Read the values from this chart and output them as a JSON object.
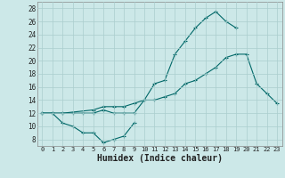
{
  "xlabel": "Humidex (Indice chaleur)",
  "xlim": [
    -0.5,
    23.5
  ],
  "ylim": [
    7,
    29
  ],
  "yticks": [
    8,
    10,
    12,
    14,
    16,
    18,
    20,
    22,
    24,
    26,
    28
  ],
  "xticks": [
    0,
    1,
    2,
    3,
    4,
    5,
    6,
    7,
    8,
    9,
    10,
    11,
    12,
    13,
    14,
    15,
    16,
    17,
    18,
    19,
    20,
    21,
    22,
    23
  ],
  "bg_color": "#cce8e8",
  "grid_color": "#aacece",
  "line_color": "#006868",
  "line1_y": [
    12,
    12,
    10.5,
    10,
    9,
    9,
    7.5,
    8,
    8.5,
    10.5
  ],
  "line1_x": [
    0,
    1,
    2,
    3,
    4,
    5,
    6,
    7,
    8,
    9
  ],
  "line2_y": [
    12,
    12,
    12,
    12,
    12,
    12,
    12.5,
    12,
    12,
    12,
    14,
    14,
    14.5,
    15,
    16.5,
    17,
    18,
    19,
    20.5,
    21,
    21,
    16.5,
    15,
    13.5
  ],
  "line2_x": [
    0,
    1,
    2,
    3,
    4,
    5,
    6,
    7,
    8,
    9,
    10,
    11,
    12,
    13,
    14,
    15,
    16,
    17,
    18,
    19,
    20,
    21,
    22,
    23
  ],
  "line3_y": [
    12,
    12,
    12,
    12.5,
    13,
    13,
    13,
    13.5,
    14,
    16.5,
    17,
    21,
    23,
    25,
    26.5,
    27.5,
    26,
    25
  ],
  "line3_x": [
    0,
    1,
    2,
    5,
    6,
    7,
    8,
    9,
    10,
    11,
    12,
    13,
    14,
    15,
    16,
    17,
    18,
    19
  ]
}
